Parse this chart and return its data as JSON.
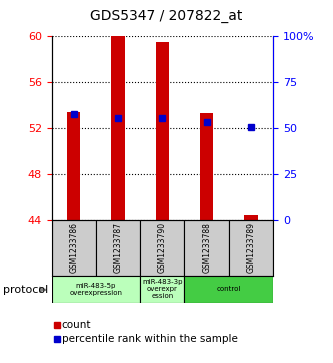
{
  "title": "GDS5347 / 207822_at",
  "samples": [
    "GSM1233786",
    "GSM1233787",
    "GSM1233790",
    "GSM1233788",
    "GSM1233789"
  ],
  "red_values": [
    53.4,
    60.0,
    59.5,
    53.3,
    44.4
  ],
  "blue_values_left": [
    53.2,
    52.9,
    52.85,
    52.55,
    52.1
  ],
  "blue_pct": [
    55,
    55,
    55,
    53,
    50
  ],
  "ymin": 44,
  "ymax": 60,
  "yticks": [
    44,
    48,
    52,
    56,
    60
  ],
  "y2ticks": [
    0,
    25,
    50,
    75,
    100
  ],
  "y2labels": [
    "0",
    "25",
    "50",
    "75",
    "100%"
  ],
  "bar_color": "#cc0000",
  "blue_color": "#0000cc",
  "groups": [
    {
      "label": "miR-483-5p\noverexpression",
      "start": 0,
      "end": 2,
      "color": "#bbffbb"
    },
    {
      "label": "miR-483-3p\noverexpr\nession",
      "start": 2,
      "end": 3,
      "color": "#bbffbb"
    },
    {
      "label": "control",
      "start": 3,
      "end": 5,
      "color": "#44cc44"
    }
  ],
  "protocol_label": "protocol",
  "legend_count": "count",
  "legend_pct": "percentile rank within the sample",
  "bg_color": "#ffffff"
}
